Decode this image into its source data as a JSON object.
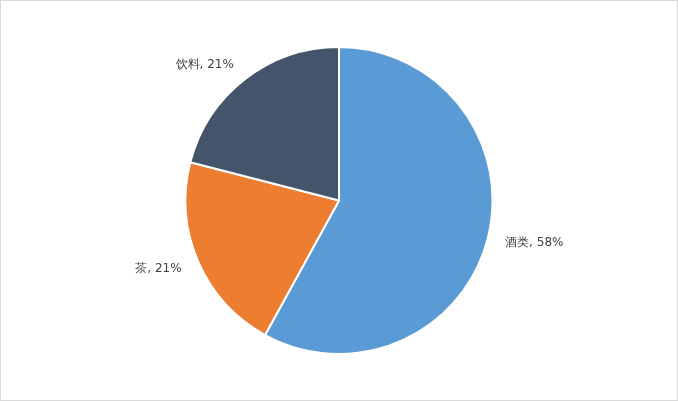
{
  "chart_data": {
    "type": "pie",
    "categories": [
      "酒类",
      "茶",
      "饮料"
    ],
    "values": [
      58,
      21,
      21
    ],
    "value_labels": [
      "58%",
      "21%",
      "21%"
    ],
    "colors": [
      "#5b9bd5",
      "#ed7d31",
      "#44546a"
    ],
    "data_labels": true
  }
}
